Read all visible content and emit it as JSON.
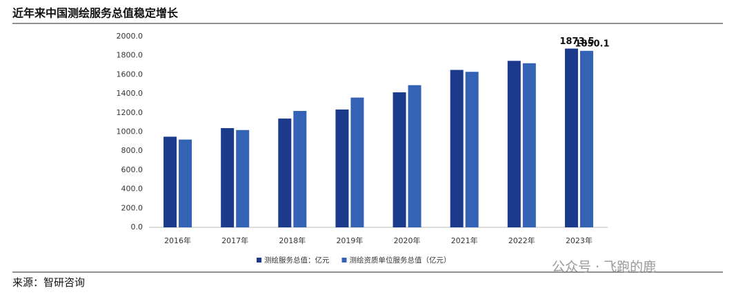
{
  "header": {
    "title": "近年来中国测绘服务总值稳定增长"
  },
  "chart_data": {
    "type": "bar",
    "categories": [
      "2016年",
      "2017年",
      "2018年",
      "2019年",
      "2020年",
      "2021年",
      "2022年",
      "2023年"
    ],
    "series": [
      {
        "name": "测绘服务总值：亿元",
        "color": "#1b3a8c",
        "values": [
          950,
          1040,
          1140,
          1235,
          1415,
          1650,
          1745,
          1873.5
        ],
        "value_labels": [
          null,
          null,
          null,
          null,
          null,
          null,
          null,
          "1873.5"
        ]
      },
      {
        "name": "测绘资质单位服务总值（亿元）",
        "color": "#3462b4",
        "values": [
          920,
          1020,
          1220,
          1360,
          1490,
          1630,
          1720,
          1850.1
        ],
        "value_labels": [
          null,
          null,
          null,
          null,
          null,
          null,
          null,
          "1850.1"
        ]
      }
    ],
    "ylim": [
      0,
      2000
    ],
    "yticks": [
      {
        "value": 0,
        "label": "0.0"
      },
      {
        "value": 200,
        "label": "200.0"
      },
      {
        "value": 400,
        "label": "400.0"
      },
      {
        "value": 600,
        "label": "600.0"
      },
      {
        "value": 800,
        "label": "800.0"
      },
      {
        "value": 1000,
        "label": "1000.0"
      },
      {
        "value": 1200,
        "label": "1200.0"
      },
      {
        "value": 1400,
        "label": "1400.0"
      },
      {
        "value": 1600,
        "label": "1600.0"
      },
      {
        "value": 1800,
        "label": "1800.0"
      },
      {
        "value": 2000,
        "label": "2000.0"
      }
    ],
    "grid": false,
    "legend": "bottom"
  },
  "source": "来源：智研咨询",
  "watermark": "公众号 · 飞跑的鹿"
}
